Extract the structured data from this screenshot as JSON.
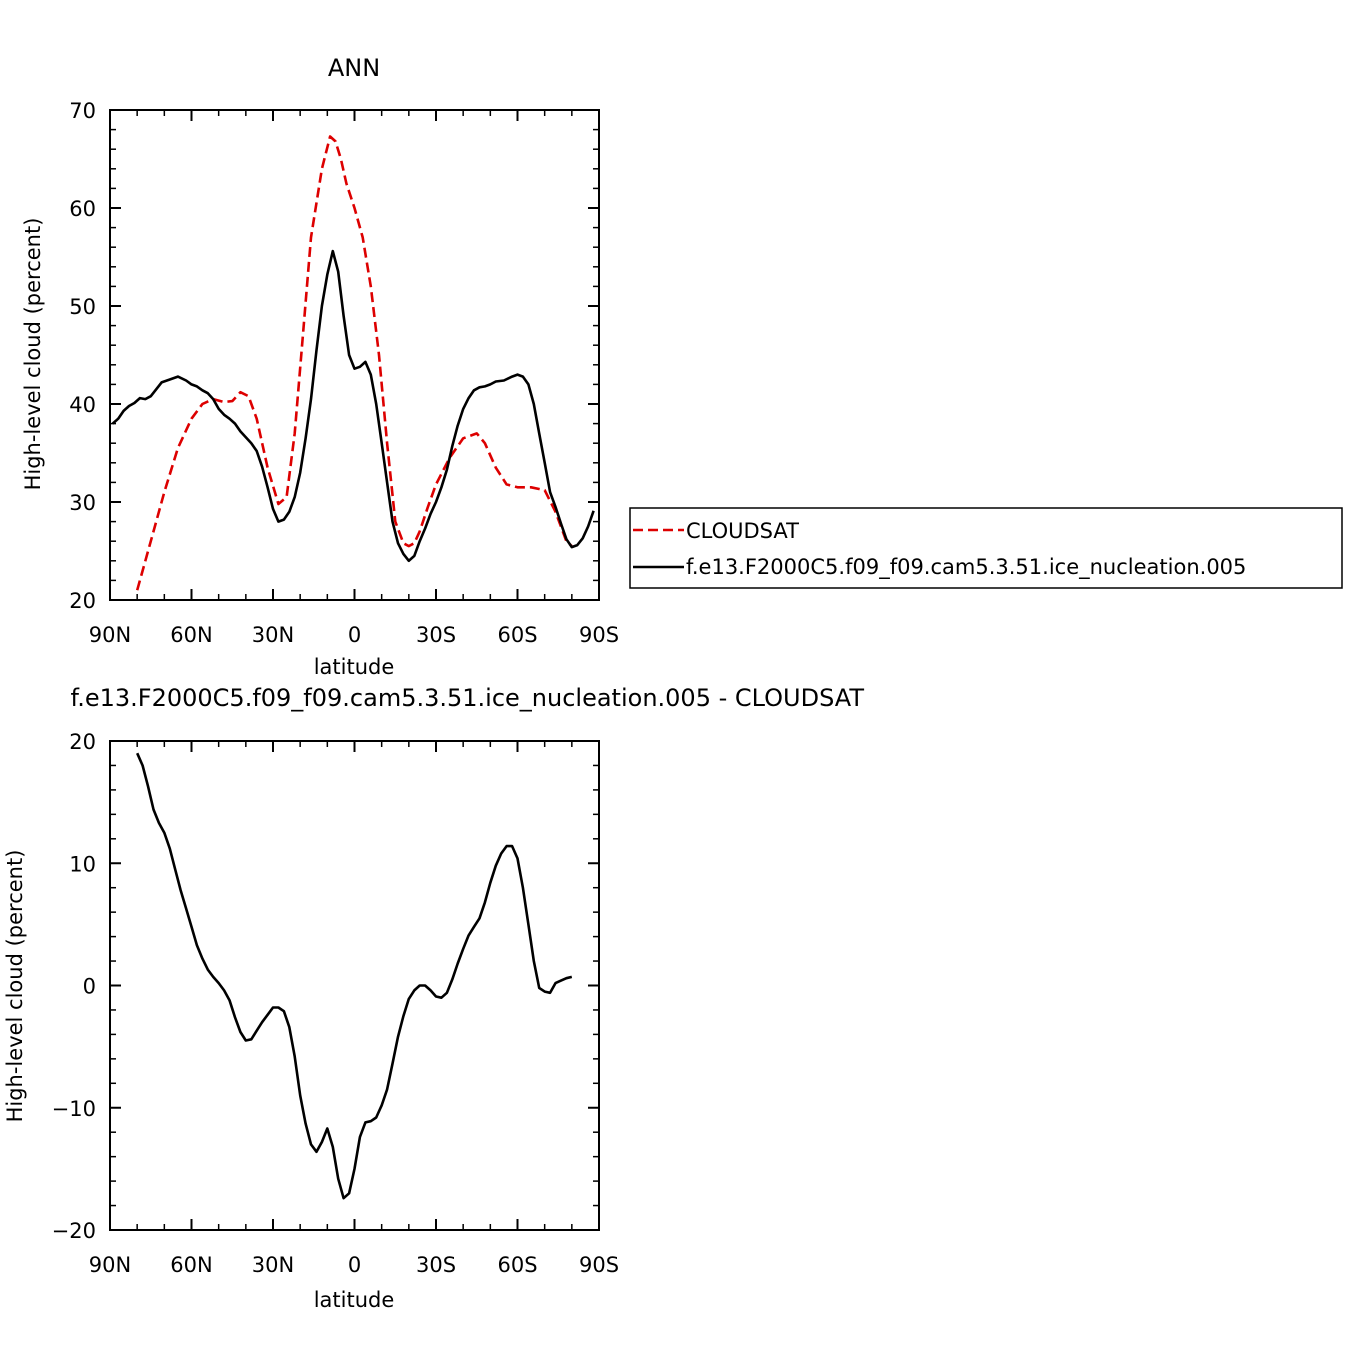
{
  "chart_data": [
    {
      "type": "line",
      "title": "ANN",
      "xlabel": "latitude",
      "ylabel": "High-level cloud (percent)",
      "xlim": [
        90,
        -90
      ],
      "ylim": [
        20,
        70
      ],
      "x_ticks": [
        {
          "value": 90,
          "label": "90N"
        },
        {
          "value": 60,
          "label": "60N"
        },
        {
          "value": 30,
          "label": "30N"
        },
        {
          "value": 0,
          "label": "0"
        },
        {
          "value": -30,
          "label": "30S"
        },
        {
          "value": -60,
          "label": "60S"
        },
        {
          "value": -90,
          "label": "90S"
        }
      ],
      "y_ticks": [
        {
          "value": 20,
          "label": "20"
        },
        {
          "value": 30,
          "label": "30"
        },
        {
          "value": 40,
          "label": "40"
        },
        {
          "value": 50,
          "label": "50"
        },
        {
          "value": 60,
          "label": "60"
        },
        {
          "value": 70,
          "label": "70"
        }
      ],
      "legend": "right",
      "series": [
        {
          "name": "CLOUDSAT",
          "color": "#dd0000",
          "dash": true,
          "x": [
            80,
            75,
            70,
            65,
            60,
            56,
            52,
            48,
            45,
            42,
            39,
            36,
            32,
            28,
            25,
            22,
            19,
            16,
            12,
            9,
            7,
            5,
            3,
            0,
            -3,
            -6,
            -9,
            -12,
            -15,
            -18,
            -20,
            -22,
            -24,
            -27,
            -30,
            -35,
            -40,
            -45,
            -48,
            -52,
            -56,
            -60,
            -65,
            -70,
            -74,
            -78,
            -80
          ],
          "y": [
            21,
            26,
            31,
            35.5,
            38.5,
            40,
            40.5,
            40.2,
            40.3,
            41.2,
            40.8,
            38.5,
            33.5,
            29.8,
            30.5,
            37,
            47,
            57,
            64,
            67.3,
            66.8,
            65,
            62.5,
            60,
            57,
            52,
            45,
            36,
            28,
            25.8,
            25.5,
            25.8,
            27,
            29.5,
            31.8,
            34.5,
            36.5,
            37,
            36,
            33.5,
            31.8,
            31.5,
            31.5,
            31.2,
            29,
            26,
            25.5
          ]
        },
        {
          "name": "f.e13.F2000C5.f09_f09.cam5.3.51.ice_nucleation.005",
          "color": "#000000",
          "dash": false,
          "x": [
            89,
            87,
            85,
            83,
            81,
            79,
            77,
            75,
            73,
            71,
            68,
            65,
            62,
            60,
            58,
            56,
            54,
            52,
            50,
            48,
            46,
            44,
            42,
            40,
            38,
            36,
            34,
            32,
            30,
            28,
            26,
            24,
            22,
            20,
            18,
            16,
            14,
            12,
            10,
            8,
            6,
            4,
            2,
            0,
            -2,
            -4,
            -6,
            -8,
            -10,
            -12,
            -14,
            -16,
            -18,
            -20,
            -22,
            -24,
            -26,
            -28,
            -30,
            -32,
            -34,
            -36,
            -38,
            -40,
            -42,
            -44,
            -46,
            -48,
            -50,
            -52,
            -55,
            -58,
            -60,
            -62,
            -64,
            -66,
            -68,
            -70,
            -72,
            -74,
            -76,
            -78,
            -80,
            -82,
            -84,
            -86,
            -88
          ],
          "y": [
            38,
            38.5,
            39.3,
            39.8,
            40.1,
            40.6,
            40.5,
            40.8,
            41.5,
            42.2,
            42.5,
            42.8,
            42.4,
            42,
            41.8,
            41.4,
            41.1,
            40.5,
            39.5,
            38.9,
            38.5,
            38,
            37.2,
            36.6,
            36,
            35.2,
            33.6,
            31.5,
            29.3,
            28,
            28.2,
            29,
            30.5,
            33,
            36.5,
            40.5,
            45.5,
            50,
            53.2,
            55.6,
            53.5,
            49,
            45,
            43.6,
            43.8,
            44.3,
            43,
            40,
            36,
            32,
            28,
            25.8,
            24.7,
            24,
            24.5,
            26,
            27.3,
            28.8,
            30,
            31.5,
            33.3,
            35.7,
            37.8,
            39.5,
            40.6,
            41.4,
            41.7,
            41.8,
            42,
            42.3,
            42.4,
            42.8,
            43,
            42.8,
            42,
            40,
            37,
            34,
            31,
            29.5,
            27.8,
            26.2,
            25.4,
            25.6,
            26.3,
            27.5,
            29.1
          ]
        }
      ]
    },
    {
      "type": "line",
      "title": "f.e13.F2000C5.f09_f09.cam5.3.51.ice_nucleation.005 - CLOUDSAT",
      "xlabel": "latitude",
      "ylabel": "High-level cloud (percent)",
      "xlim": [
        90,
        -90
      ],
      "ylim": [
        -20,
        20
      ],
      "x_ticks": [
        {
          "value": 90,
          "label": "90N"
        },
        {
          "value": 60,
          "label": "60N"
        },
        {
          "value": 30,
          "label": "30N"
        },
        {
          "value": 0,
          "label": "0"
        },
        {
          "value": -30,
          "label": "30S"
        },
        {
          "value": -60,
          "label": "60S"
        },
        {
          "value": -90,
          "label": "90S"
        }
      ],
      "y_ticks": [
        {
          "value": -20,
          "label": "−20"
        },
        {
          "value": -10,
          "label": "−10"
        },
        {
          "value": 0,
          "label": "0"
        },
        {
          "value": 10,
          "label": "10"
        },
        {
          "value": 20,
          "label": "20"
        }
      ],
      "series": [
        {
          "color": "#000000",
          "dash": false,
          "x": [
            80,
            78,
            76,
            74,
            72,
            70,
            68,
            66,
            64,
            62,
            60,
            58,
            56,
            54,
            52,
            50,
            48,
            46,
            44,
            42,
            40,
            38,
            36,
            34,
            32,
            30,
            28,
            26,
            24,
            22,
            20,
            18,
            16,
            14,
            12,
            10,
            8,
            6,
            4,
            2,
            0,
            -2,
            -4,
            -6,
            -8,
            -10,
            -12,
            -14,
            -16,
            -18,
            -20,
            -22,
            -24,
            -26,
            -28,
            -30,
            -32,
            -34,
            -36,
            -38,
            -40,
            -42,
            -44,
            -46,
            -48,
            -50,
            -52,
            -54,
            -56,
            -58,
            -60,
            -62,
            -64,
            -66,
            -68,
            -70,
            -72,
            -74,
            -76,
            -78,
            -80
          ],
          "y": [
            19,
            18,
            16.3,
            14.4,
            13.3,
            12.5,
            11.2,
            9.5,
            7.8,
            6.3,
            4.8,
            3.3,
            2.2,
            1.3,
            0.7,
            0.2,
            -0.4,
            -1.2,
            -2.6,
            -3.8,
            -4.5,
            -4.4,
            -3.7,
            -3.0,
            -2.4,
            -1.8,
            -1.8,
            -2.1,
            -3.4,
            -5.8,
            -9.0,
            -11.3,
            -13.0,
            -13.6,
            -12.8,
            -11.7,
            -13.2,
            -15.8,
            -17.4,
            -17.0,
            -15.0,
            -12.4,
            -11.2,
            -11.1,
            -10.8,
            -9.8,
            -8.5,
            -6.4,
            -4.2,
            -2.5,
            -1.1,
            -0.4,
            0.0,
            0.0,
            -0.4,
            -0.9,
            -1.0,
            -0.6,
            0.5,
            1.8,
            3.0,
            4.1,
            4.8,
            5.5,
            6.8,
            8.4,
            9.8,
            10.8,
            11.4,
            11.4,
            10.4,
            8.0,
            5.0,
            2.0,
            -0.2,
            -0.5,
            -0.6,
            0.2,
            0.4,
            0.6,
            0.7
          ]
        }
      ]
    }
  ]
}
